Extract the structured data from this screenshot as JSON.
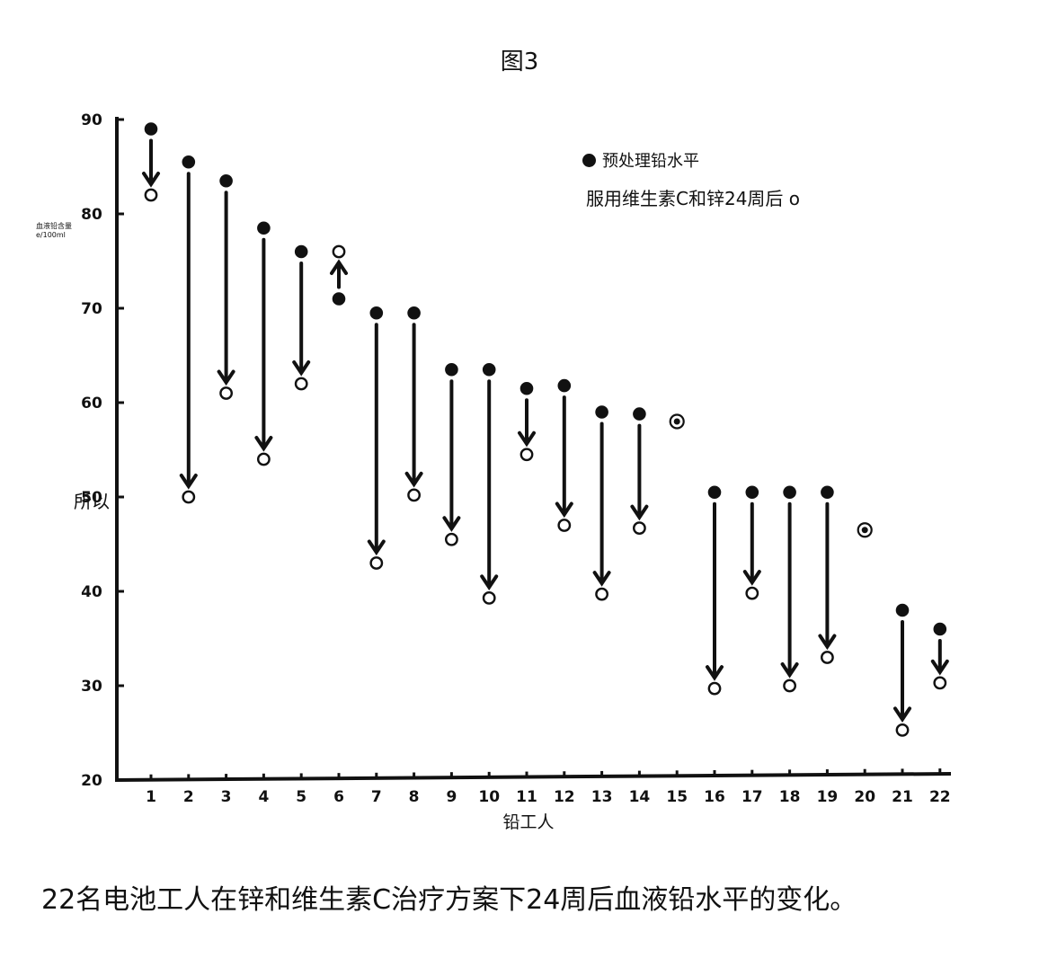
{
  "figure_title": "图3",
  "caption": "22名电池工人在锌和维生素C治疗方案下24周后血液铅水平的变化。",
  "side_text": "所以",
  "legend": {
    "pre": "预处理铅水平",
    "post": "服用维生素C和锌24周后 o"
  },
  "chart_data": {
    "type": "scatter",
    "title": "图3",
    "xlabel": "铅工人",
    "ylabel_lines": [
      "血液铅含量",
      "e/100ml"
    ],
    "ylim": [
      20,
      90
    ],
    "yticks": [
      20,
      30,
      40,
      50,
      60,
      70,
      80,
      90
    ],
    "ytick_labels": [
      "20",
      "30",
      "40",
      "50",
      "60",
      "70",
      "80",
      "90"
    ],
    "categories": [
      "1",
      "2",
      "3",
      "4",
      "5",
      "6",
      "7",
      "8",
      "9",
      "10",
      "11",
      "12",
      "13",
      "14",
      "15",
      "16",
      "17",
      "18",
      "19",
      "20",
      "21",
      "22"
    ],
    "series": [
      {
        "name": "预处理铅水平",
        "marker": "filled",
        "values": [
          89,
          85.5,
          83.5,
          78.5,
          76,
          71,
          69.5,
          69.5,
          63.5,
          63.5,
          61.5,
          61.8,
          59,
          58.8,
          58,
          50.5,
          50.5,
          50.5,
          50.5,
          46.5,
          38,
          36
        ]
      },
      {
        "name": "服用维生素C和锌24周后",
        "marker": "open",
        "values": [
          82,
          50,
          61,
          54,
          62,
          76,
          43,
          50.2,
          45.5,
          39.3,
          54.5,
          47,
          39.7,
          46.7,
          58,
          29.7,
          39.8,
          30,
          33,
          46.5,
          25.3,
          30.3
        ]
      }
    ]
  }
}
